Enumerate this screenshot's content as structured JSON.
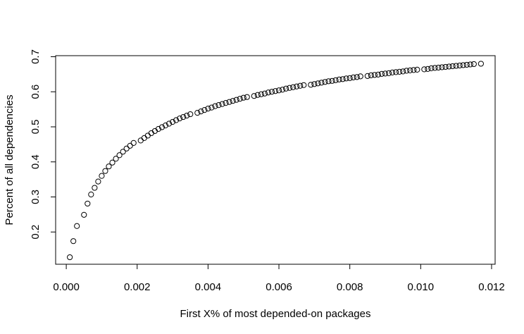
{
  "chart_data": {
    "type": "scatter",
    "title": "",
    "xlabel": "First X% of most depended-on packages",
    "ylabel": "Percent of all dependencies",
    "xlim": [
      -0.0003,
      0.0121
    ],
    "ylim": [
      0.108,
      0.703
    ],
    "x_ticks": [
      "0.000",
      "0.002",
      "0.004",
      "0.006",
      "0.008",
      "0.010",
      "0.012"
    ],
    "y_ticks": [
      "0.2",
      "0.3",
      "0.4",
      "0.5",
      "0.6",
      "0.7"
    ],
    "grid": false,
    "legend": "none",
    "marker": "open-circle",
    "colors": {
      "marker": "#000000",
      "axis": "#000000",
      "background": "#ffffff"
    },
    "series": [
      {
        "x": [
          0.0001,
          0.0002,
          0.0003,
          0.0005,
          0.0006,
          0.0007,
          0.0008,
          0.0009,
          0.001,
          0.0011,
          0.0012,
          0.0013,
          0.0014,
          0.0015,
          0.0016,
          0.0017,
          0.0018,
          0.0019,
          0.0021,
          0.0022,
          0.0023,
          0.0024,
          0.0025,
          0.0026,
          0.0027,
          0.0028,
          0.0029,
          0.003,
          0.0031,
          0.0032,
          0.0033,
          0.0034,
          0.0035,
          0.0037,
          0.0038,
          0.0039,
          0.004,
          0.0041,
          0.0042,
          0.0043,
          0.0044,
          0.0045,
          0.0046,
          0.0047,
          0.0048,
          0.0049,
          0.005,
          0.0051,
          0.0053,
          0.0054,
          0.0055,
          0.0056,
          0.0057,
          0.0058,
          0.0059,
          0.006,
          0.0061,
          0.0062,
          0.0063,
          0.0064,
          0.0065,
          0.0066,
          0.0067,
          0.0069,
          0.007,
          0.0071,
          0.0072,
          0.0073,
          0.0074,
          0.0075,
          0.0076,
          0.0077,
          0.0078,
          0.0079,
          0.008,
          0.0081,
          0.0082,
          0.0083,
          0.0085,
          0.0086,
          0.0087,
          0.0088,
          0.0089,
          0.009,
          0.0091,
          0.0092,
          0.0093,
          0.0094,
          0.0095,
          0.0096,
          0.0097,
          0.0098,
          0.0099,
          0.0101,
          0.0102,
          0.0103,
          0.0104,
          0.0105,
          0.0106,
          0.0107,
          0.0108,
          0.0109,
          0.011,
          0.0111,
          0.0112,
          0.0113,
          0.0114,
          0.0115,
          0.0117
        ],
        "y": [
          0.128,
          0.174,
          0.217,
          0.249,
          0.281,
          0.307,
          0.326,
          0.344,
          0.36,
          0.374,
          0.387,
          0.398,
          0.409,
          0.419,
          0.429,
          0.438,
          0.446,
          0.454,
          0.461,
          0.468,
          0.475,
          0.482,
          0.488,
          0.494,
          0.499,
          0.504,
          0.509,
          0.514,
          0.519,
          0.524,
          0.528,
          0.532,
          0.536,
          0.54,
          0.544,
          0.548,
          0.552,
          0.555,
          0.559,
          0.562,
          0.565,
          0.568,
          0.571,
          0.574,
          0.577,
          0.58,
          0.583,
          0.585,
          0.588,
          0.591,
          0.593,
          0.595,
          0.598,
          0.6,
          0.602,
          0.604,
          0.606,
          0.609,
          0.611,
          0.613,
          0.615,
          0.617,
          0.619,
          0.62,
          0.622,
          0.624,
          0.626,
          0.628,
          0.63,
          0.631,
          0.633,
          0.635,
          0.636,
          0.638,
          0.639,
          0.641,
          0.642,
          0.644,
          0.645,
          0.647,
          0.648,
          0.649,
          0.651,
          0.652,
          0.653,
          0.655,
          0.656,
          0.657,
          0.658,
          0.66,
          0.661,
          0.662,
          0.663,
          0.664,
          0.665,
          0.667,
          0.668,
          0.669,
          0.67,
          0.671,
          0.672,
          0.673,
          0.674,
          0.675,
          0.676,
          0.677,
          0.678,
          0.679,
          0.68
        ]
      }
    ]
  }
}
